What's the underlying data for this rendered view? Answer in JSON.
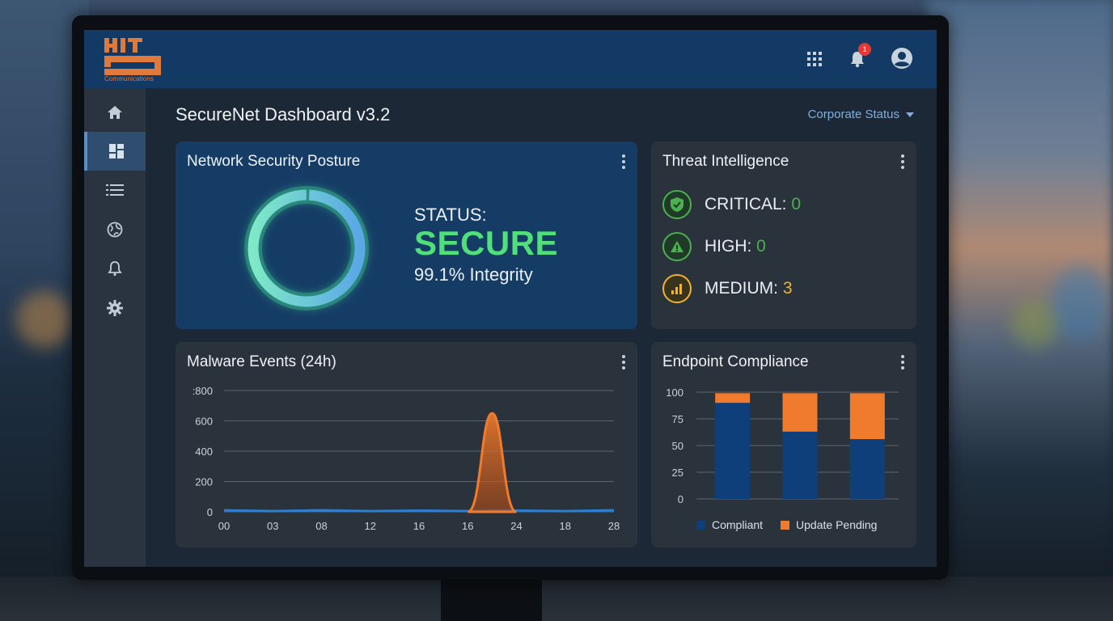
{
  "header": {
    "logo_text": "HIT",
    "logo_subtitle": "Communications",
    "notification_count": "1"
  },
  "page": {
    "title": "SecureNet Dashboard v3.2",
    "status_dropdown": "Corporate Status"
  },
  "sidebar": {
    "items": [
      {
        "icon": "home-icon"
      },
      {
        "icon": "dashboard-icon",
        "active": true
      },
      {
        "icon": "list-icon"
      },
      {
        "icon": "globe-icon"
      },
      {
        "icon": "bell-icon"
      },
      {
        "icon": "gear-icon"
      }
    ]
  },
  "posture": {
    "title": "Network Security Posture",
    "status_label": "STATUS:",
    "status_value": "SECURE",
    "integrity": "99.1% Integrity",
    "integrity_percent": 99.1
  },
  "threats": {
    "title": "Threat Intelligence",
    "items": [
      {
        "label": "CRITICAL: ",
        "count": "0",
        "color": "#4caf50",
        "icon": "shield-check-icon"
      },
      {
        "label": "HIGH: ",
        "count": "0",
        "color": "#4caf50",
        "icon": "warning-triangle-icon"
      },
      {
        "label": "MEDIUM: ",
        "count": "3",
        "color": "#f0b429",
        "icon": "signal-bars-icon"
      }
    ]
  },
  "malware": {
    "title": "Malware Events (24h)"
  },
  "endpoint": {
    "title": "Endpoint Compliance"
  },
  "chart_data": [
    {
      "type": "area",
      "title": "Malware Events (24h)",
      "x_tick_labels": [
        "00",
        "03",
        "08",
        "12",
        "16",
        "16",
        "24",
        "18",
        "28"
      ],
      "y_tick_labels": [
        ":800",
        "600",
        "400",
        "200",
        "0"
      ],
      "ylim": [
        0,
        800
      ],
      "grid": true,
      "series": [
        {
          "color": "#2f7fd0",
          "x_index": [
            0,
            1,
            2,
            3,
            4,
            5,
            6,
            7,
            8
          ],
          "values": [
            10,
            5,
            10,
            5,
            8,
            5,
            8,
            5,
            10
          ]
        },
        {
          "color": "#f07b2c",
          "peak_x_index": 5.5,
          "peak_value": 650
        }
      ]
    },
    {
      "type": "bar",
      "title": "Endpoint Compliance",
      "stacked": true,
      "categories": [
        "",
        "",
        ""
      ],
      "y_tick_labels": [
        "100",
        "75",
        "50",
        "25",
        "0"
      ],
      "ylim": [
        0,
        100
      ],
      "grid": true,
      "legend": "bottom",
      "series": [
        {
          "name": "Compliant",
          "color": "#0f3f7a",
          "values": [
            90,
            63,
            56
          ]
        },
        {
          "name": "Update Pending",
          "color": "#f07b2c",
          "values": [
            9,
            36,
            43
          ]
        }
      ]
    }
  ]
}
